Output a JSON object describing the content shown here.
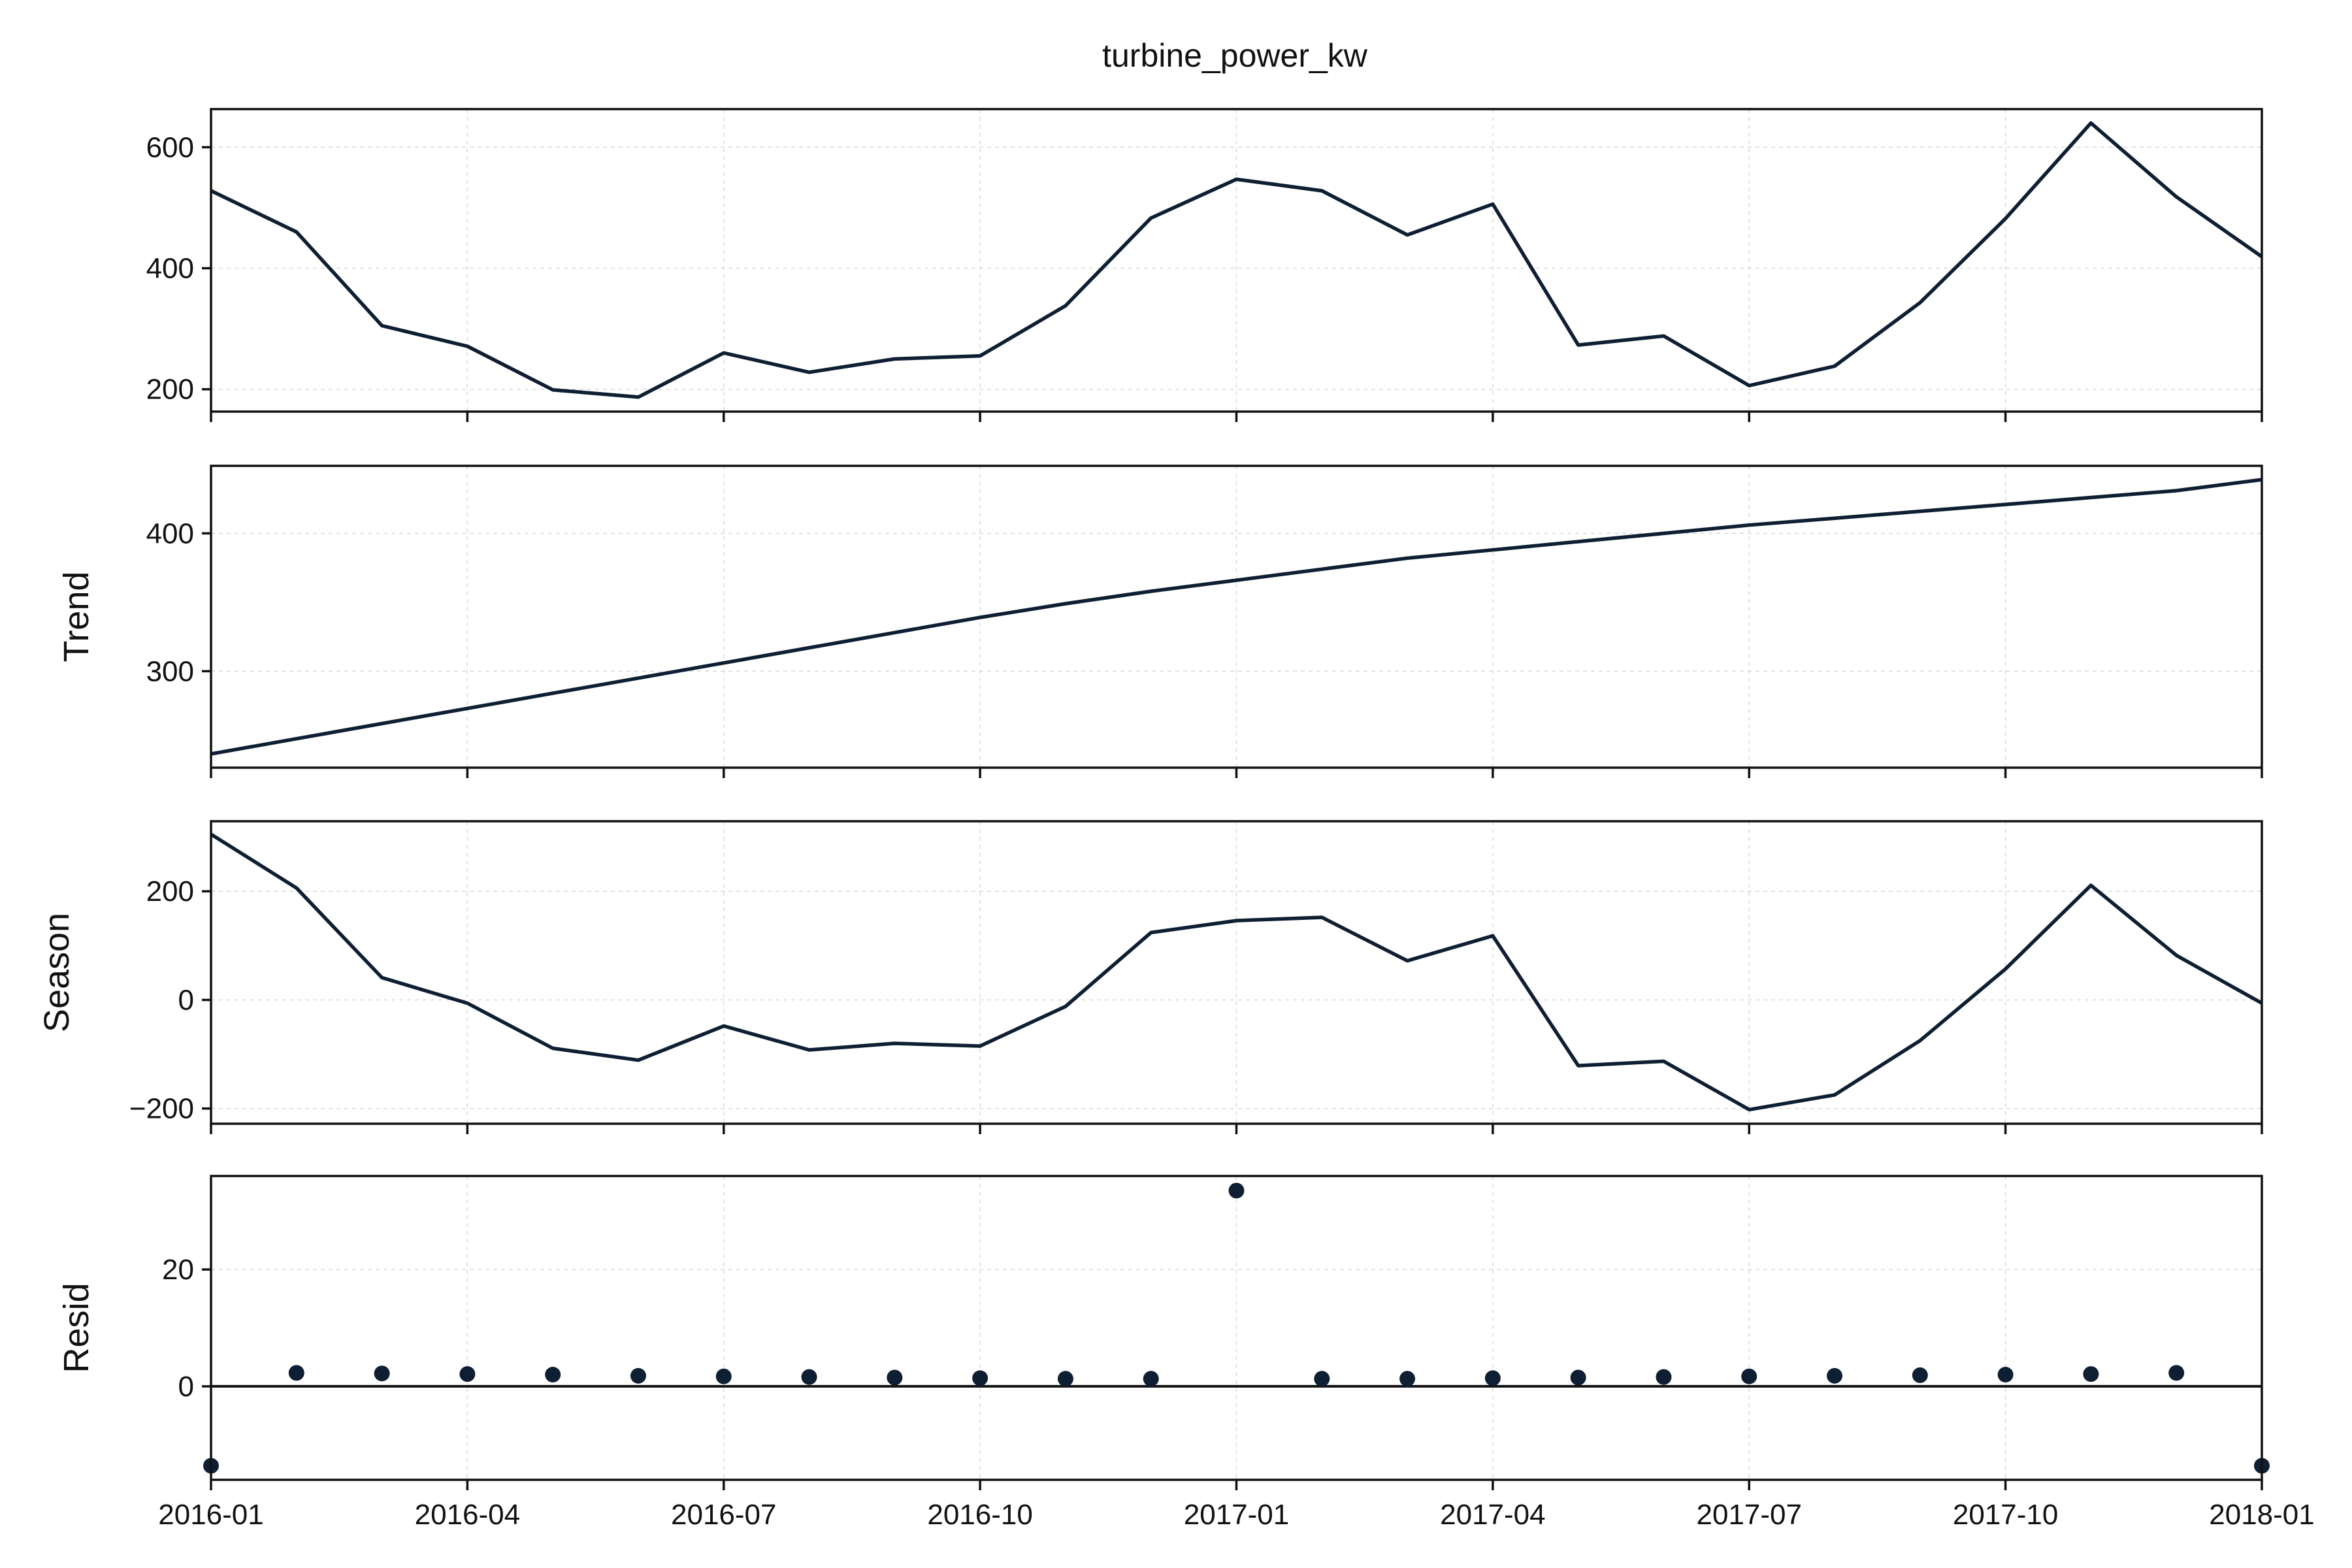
{
  "chart_data": {
    "type": "line",
    "title": "turbine_power_kw",
    "x": [
      "2016-01",
      "2016-02",
      "2016-03",
      "2016-04",
      "2016-05",
      "2016-06",
      "2016-07",
      "2016-08",
      "2016-09",
      "2016-10",
      "2016-11",
      "2016-12",
      "2017-01",
      "2017-02",
      "2017-03",
      "2017-04",
      "2017-05",
      "2017-06",
      "2017-07",
      "2017-08",
      "2017-09",
      "2017-10",
      "2017-11",
      "2017-12",
      "2018-01"
    ],
    "xticks": [
      "2016-01",
      "2016-04",
      "2016-07",
      "2016-10",
      "2017-01",
      "2017-04",
      "2017-07",
      "2017-10",
      "2018-01"
    ],
    "grid": true,
    "colors": {
      "series": "#0f1f33",
      "frame": "#111111",
      "grid": "#d9d9d9"
    },
    "panels": [
      {
        "name": "observed",
        "ylabel": "",
        "style": "line",
        "ylim": [
          163,
          663
        ],
        "yticks": [
          200,
          400,
          600
        ],
        "values": [
          528,
          460,
          305,
          271,
          199,
          187,
          260,
          228,
          250,
          255,
          338,
          483,
          547,
          528,
          455,
          506,
          273,
          288,
          206,
          238,
          343,
          482,
          640,
          518,
          419
        ]
      },
      {
        "name": "trend",
        "ylabel": "Trend",
        "style": "line",
        "ylim": [
          230,
          449
        ],
        "yticks": [
          300,
          400
        ],
        "values": [
          240,
          251,
          262,
          273,
          284,
          295,
          306,
          317,
          328,
          339,
          349,
          358,
          366,
          374,
          382,
          388,
          394,
          400,
          406,
          411,
          416,
          421,
          426,
          431,
          439
        ]
      },
      {
        "name": "season",
        "ylabel": "Season",
        "style": "line",
        "ylim": [
          -228,
          329
        ],
        "yticks": [
          -200,
          0,
          200
        ],
        "values": [
          305,
          206,
          41,
          -6,
          -89,
          -111,
          -48,
          -92,
          -80,
          -85,
          -12,
          124,
          146,
          152,
          72,
          118,
          -121,
          -113,
          -202,
          -175,
          -75,
          57,
          211,
          82,
          -6
        ]
      },
      {
        "name": "resid",
        "ylabel": "Resid",
        "style": "scatter",
        "ylim": [
          -16,
          36
        ],
        "yticks": [
          0,
          20
        ],
        "zero_line": true,
        "values": [
          -13.6,
          2.3,
          2.2,
          2.1,
          2.0,
          1.8,
          1.7,
          1.6,
          1.5,
          1.4,
          1.3,
          1.3,
          33.5,
          1.3,
          1.3,
          1.4,
          1.5,
          1.6,
          1.7,
          1.8,
          1.9,
          2.0,
          2.1,
          2.3,
          -13.6
        ]
      }
    ]
  }
}
